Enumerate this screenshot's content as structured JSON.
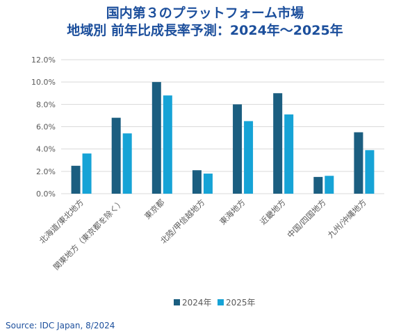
{
  "title_line1": "国内第３のプラットフォーム市場",
  "title_line2": "地域別 前年比成長率予測：2024年～2025年",
  "source": "Source: IDC Japan, 8/2024",
  "colors": {
    "series_2024": "#1b5e80",
    "series_2025": "#16a3d6",
    "grid": "#d9d9d9",
    "title": "#1c4f9c"
  },
  "chart_data": {
    "type": "bar",
    "title": "国内第３のプラットフォーム市場 地域別 前年比成長率予測：2024年～2025年",
    "categories": [
      "北海道/東北地方",
      "関東地方（東京都を除く）",
      "東京都",
      "北陸/甲信越地方",
      "東海地方",
      "近畿地方",
      "中国/四国地方",
      "九州/沖縄地方"
    ],
    "series": [
      {
        "name": "2024年",
        "values": [
          2.5,
          6.8,
          10.0,
          2.1,
          8.0,
          9.0,
          1.5,
          5.5
        ]
      },
      {
        "name": "2025年",
        "values": [
          3.6,
          5.4,
          8.8,
          1.8,
          6.5,
          7.1,
          1.6,
          3.9
        ]
      }
    ],
    "ylim": [
      0,
      12
    ],
    "yticks": [
      "0.0%",
      "2.0%",
      "4.0%",
      "6.0%",
      "8.0%",
      "10.0%",
      "12.0%"
    ],
    "grid": true,
    "legend": "bottom"
  }
}
